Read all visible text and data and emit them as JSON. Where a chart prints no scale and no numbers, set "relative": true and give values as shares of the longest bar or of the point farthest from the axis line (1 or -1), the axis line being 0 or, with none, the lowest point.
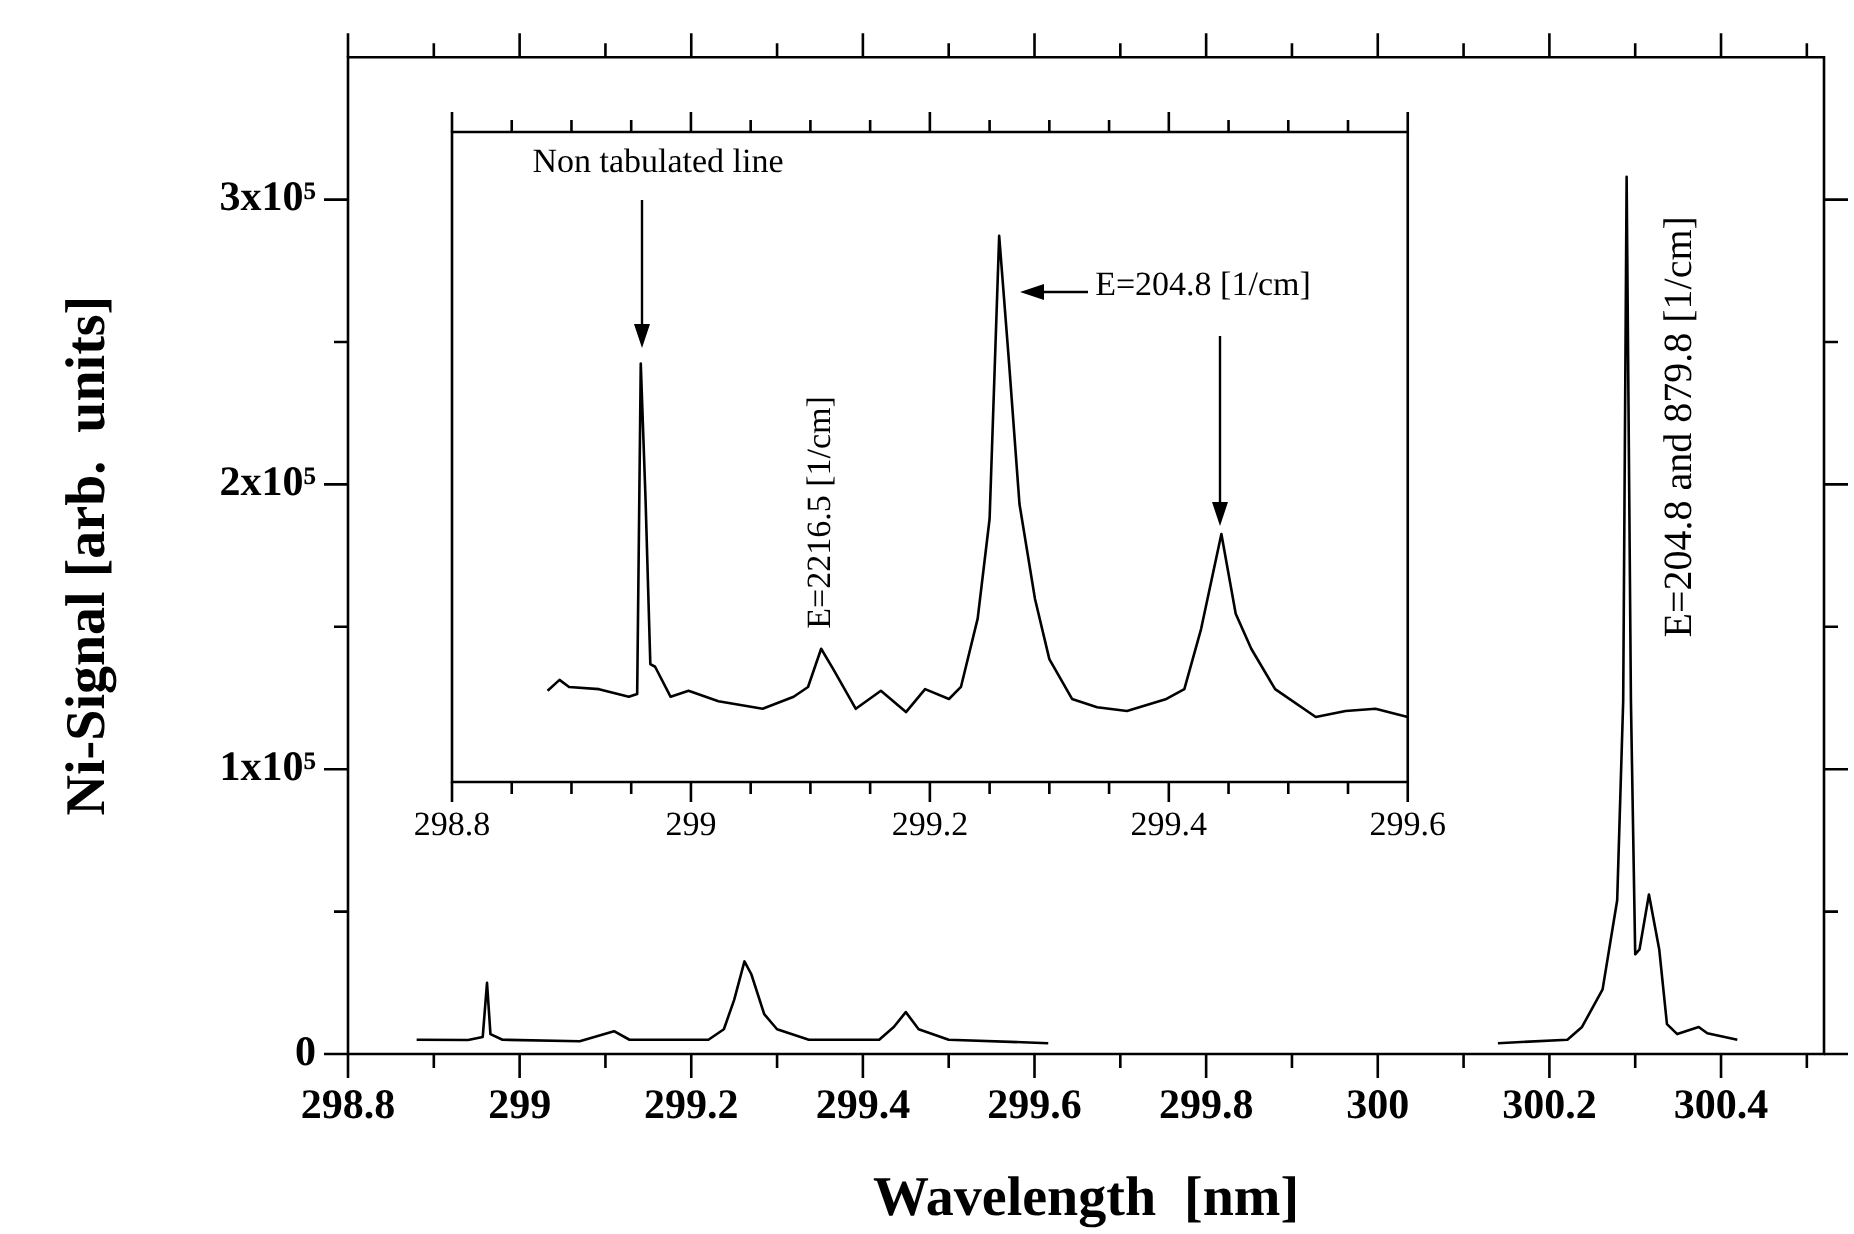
{
  "chart_data": [
    {
      "type": "line",
      "xlabel": "Wavelength  [nm]",
      "ylabel": "Ni-Signal [arb.  units]",
      "color": "#000000",
      "marker": "none",
      "line_style": "solid",
      "legend": false,
      "grid": false,
      "x": [
        298.88,
        298.94,
        298.957,
        298.962,
        298.966,
        298.98,
        299.07,
        299.11,
        299.128,
        299.22,
        299.238,
        299.25,
        299.262,
        299.27,
        299.285,
        299.3,
        299.337,
        299.419,
        299.436,
        299.45,
        299.465,
        299.5,
        299.616,
        299.9,
        300.14,
        300.221,
        300.238,
        300.262,
        300.279,
        300.286,
        300.29,
        300.295,
        300.3,
        300.305,
        300.316,
        300.328,
        300.337,
        300.349,
        300.374,
        300.384,
        300.419
      ],
      "values": [
        5000,
        4900,
        6000,
        25000,
        7000,
        5000,
        4500,
        8000,
        5000,
        5000,
        8700,
        19000,
        32500,
        28000,
        14000,
        8700,
        5000,
        5000,
        9500,
        14700,
        8700,
        5000,
        3800,
        null,
        3800,
        5000,
        9500,
        22700,
        54000,
        124000,
        308000,
        124000,
        35000,
        36700,
        56000,
        36700,
        10500,
        7000,
        9500,
        7300,
        5000
      ],
      "xlim": [
        298.8,
        300.52
      ],
      "xticks": [
        298.8,
        {
          "value": 298.9,
          "label": null
        },
        299,
        {
          "value": 299.1,
          "label": null
        },
        299.2,
        {
          "value": 299.3,
          "label": null
        },
        299.4,
        {
          "value": 299.5,
          "label": null
        },
        299.6,
        {
          "value": 299.7,
          "label": null
        },
        299.8,
        {
          "value": 299.9,
          "label": null
        },
        300,
        {
          "value": 300.1,
          "label": null
        },
        300.2,
        {
          "value": 300.3,
          "label": null
        },
        300.4,
        {
          "value": 300.5,
          "label": null
        }
      ],
      "ylim": [
        0,
        350000
      ],
      "yticks": [
        0,
        {
          "value": 50000,
          "label": null
        },
        {
          "value": 100000,
          "label": "1x10⁵"
        },
        {
          "value": 150000,
          "label": null
        },
        {
          "value": 200000,
          "label": "2x10⁵"
        },
        {
          "value": 250000,
          "label": null
        },
        {
          "value": 300000,
          "label": "3x10⁵"
        }
      ],
      "annotations": [
        {
          "text": "E=204.8 and 879.8 [1/cm]",
          "x": 300.29,
          "y": 308000
        }
      ]
    },
    {
      "type": "line",
      "relative": true,
      "color": "#000000",
      "marker": "none",
      "line_style": "solid",
      "legend": false,
      "grid": false,
      "x": [
        298.88,
        298.89,
        298.898,
        298.923,
        298.948,
        298.955,
        298.958,
        298.962,
        298.966,
        298.97,
        298.983,
        298.998,
        299.023,
        299.06,
        299.086,
        299.098,
        299.109,
        299.119,
        299.138,
        299.159,
        299.18,
        299.196,
        299.216,
        299.226,
        299.24,
        299.25,
        299.258,
        299.266,
        299.275,
        299.288,
        299.3,
        299.319,
        299.34,
        299.365,
        299.398,
        299.413,
        299.427,
        299.444,
        299.456,
        299.469,
        299.489,
        299.523,
        299.548,
        299.573,
        299.6
      ],
      "values": [
        0.167,
        0.187,
        0.174,
        0.17,
        0.156,
        0.161,
        0.766,
        0.518,
        0.216,
        0.211,
        0.156,
        0.167,
        0.148,
        0.134,
        0.156,
        0.174,
        0.244,
        0.207,
        0.134,
        0.167,
        0.128,
        0.17,
        0.152,
        0.174,
        0.299,
        0.482,
        1.0,
        0.775,
        0.509,
        0.335,
        0.225,
        0.152,
        0.137,
        0.13,
        0.152,
        0.17,
        0.28,
        0.454,
        0.308,
        0.244,
        0.17,
        0.119,
        0.13,
        0.134,
        0.119
      ],
      "xlim": [
        298.8,
        299.6
      ],
      "xticks": [
        298.8,
        {
          "value": 298.85,
          "label": null
        },
        {
          "value": 298.9,
          "label": null
        },
        {
          "value": 298.95,
          "label": null
        },
        299,
        {
          "value": 299.05,
          "label": null
        },
        {
          "value": 299.1,
          "label": null
        },
        {
          "value": 299.15,
          "label": null
        },
        299.2,
        {
          "value": 299.25,
          "label": null
        },
        {
          "value": 299.3,
          "label": null
        },
        {
          "value": 299.35,
          "label": null
        },
        299.4,
        {
          "value": 299.45,
          "label": null
        },
        {
          "value": 299.5,
          "label": null
        },
        {
          "value": 299.55,
          "label": null
        },
        299.6
      ],
      "annotations": [
        "Non tabulated line",
        {
          "text": "E=2216.5 [1/cm]",
          "x": 299.109,
          "y": 0.244
        },
        {
          "text": "E=204.8 [1/cm]",
          "x": 299.258,
          "y": 1.0
        }
      ]
    }
  ]
}
